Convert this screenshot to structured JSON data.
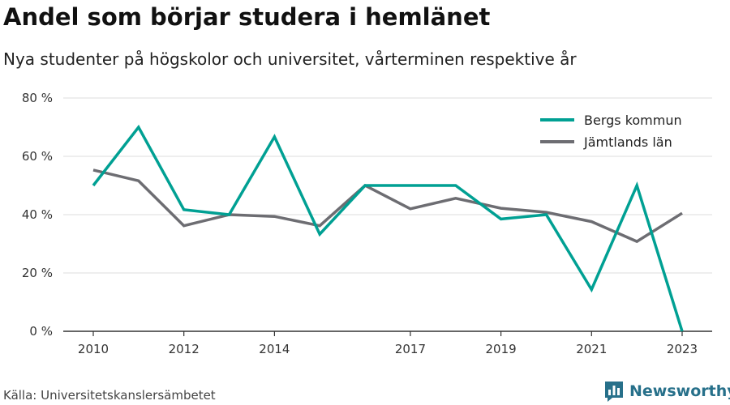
{
  "title": "Andel som börjar studera i hemlänet",
  "subtitle": "Nya studenter på högskolor och universitet, vårterminen respektive år",
  "source": "Källa: Universitetskanslersämbetet",
  "brand": {
    "name": "Newsworthy",
    "icon": "bar-chart-logo-icon",
    "color": "#27708a"
  },
  "chart_data": {
    "type": "line",
    "x": [
      2010,
      2011,
      2012,
      2013,
      2014,
      2015,
      2016,
      2017,
      2018,
      2019,
      2020,
      2021,
      2022,
      2023
    ],
    "x_ticks": [
      2010,
      2012,
      2014,
      2017,
      2019,
      2021,
      2023
    ],
    "y_ticks": [
      0,
      20,
      40,
      60,
      80
    ],
    "y_tick_suffix": " %",
    "ylim": [
      0,
      80
    ],
    "xlim": [
      2010,
      2023
    ],
    "grid": true,
    "legend_position": "top-right",
    "series": [
      {
        "name": "Bergs kommun",
        "color": "#00a093",
        "values": [
          50,
          70,
          41.7,
          40,
          66.7,
          33.3,
          50,
          50,
          50,
          38.5,
          40,
          14.3,
          50,
          0
        ]
      },
      {
        "name": "Jämtlands län",
        "color": "#6d6d72",
        "values": [
          55.3,
          51.6,
          36.2,
          40,
          39.4,
          36.2,
          50,
          42,
          45.6,
          42.2,
          40.8,
          37.6,
          30.8,
          40.5
        ]
      }
    ]
  }
}
